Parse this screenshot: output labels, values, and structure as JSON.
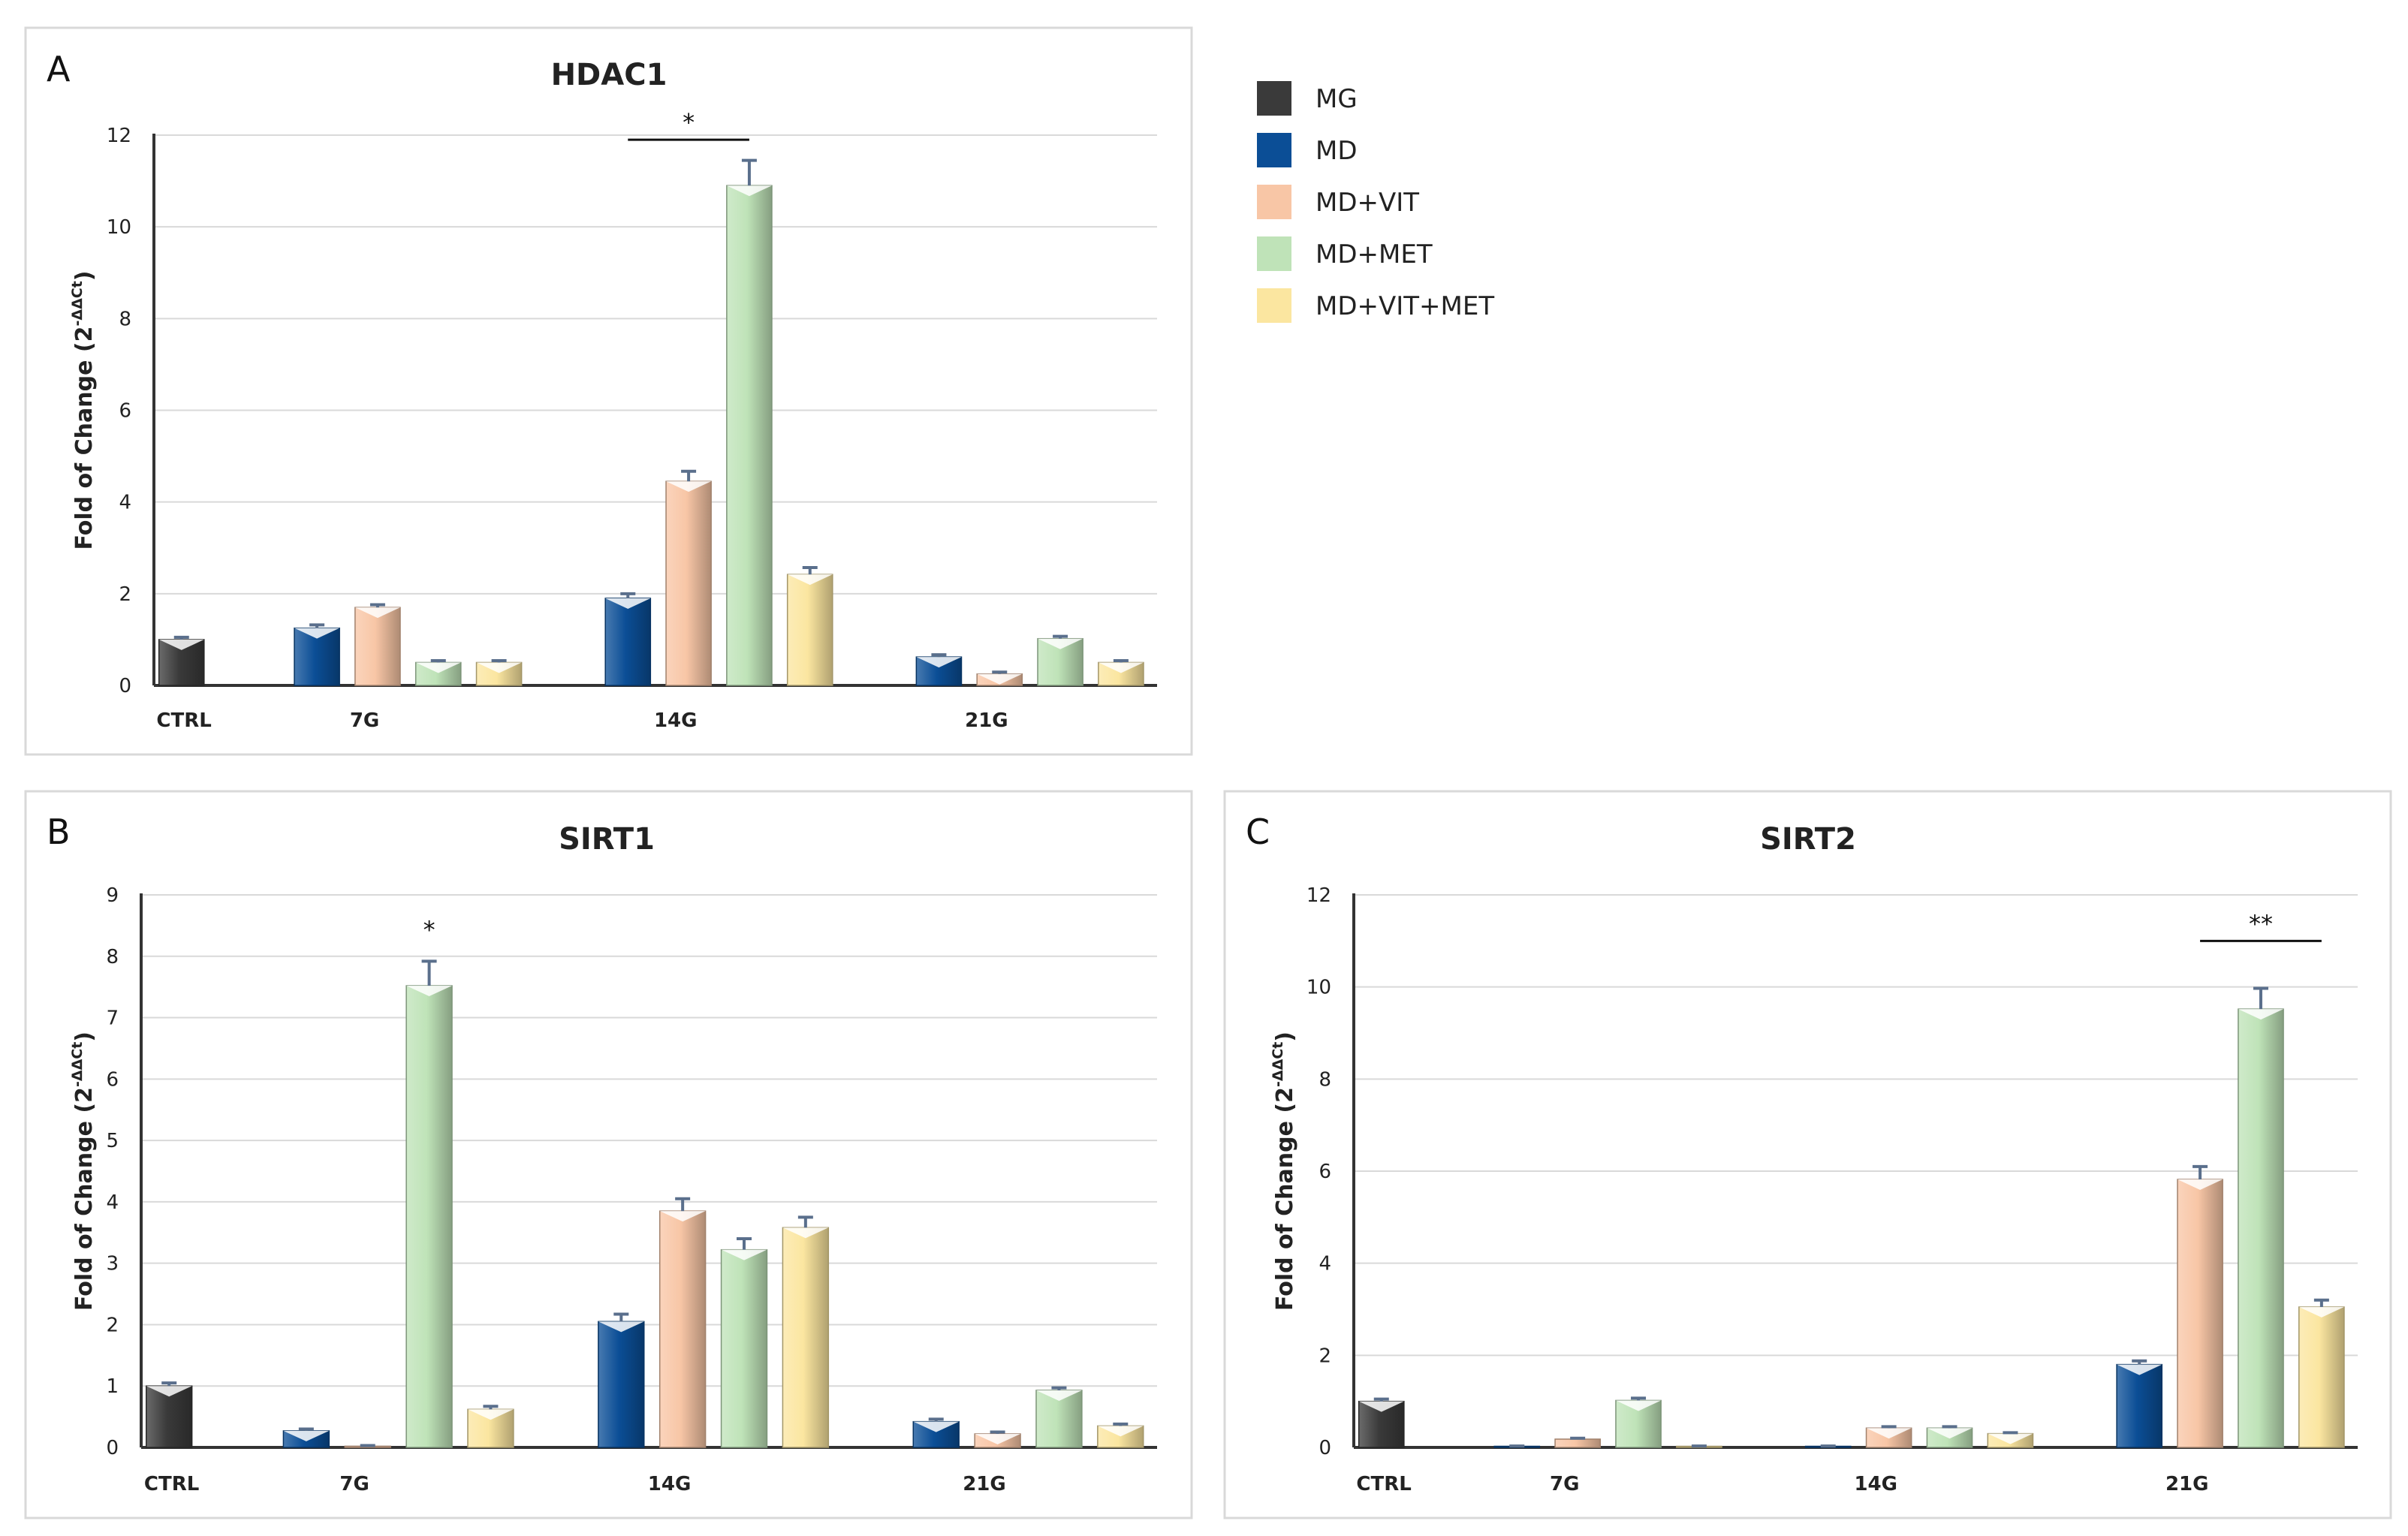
{
  "legend": {
    "items": [
      {
        "label": "MG",
        "color": "#3a3a3a"
      },
      {
        "label": "MD",
        "color": "#0b4e96"
      },
      {
        "label": "MD+VIT",
        "color": "#f8c6a6"
      },
      {
        "label": "MD+MET",
        "color": "#bfe3b8"
      },
      {
        "label": "MD+VIT+MET",
        "color": "#fbe6a0"
      }
    ]
  },
  "chart_data": [
    {
      "panel_letter": "A",
      "type": "bar",
      "title": "HDAC1",
      "ylabel": "Fold of Change (2",
      "ylabel_sup": "-ΔΔCt",
      "ylabel_close": ")",
      "ylim": [
        0,
        12
      ],
      "yticks": [
        0,
        2,
        4,
        6,
        8,
        10,
        12
      ],
      "grid": true,
      "groups": [
        "CTRL",
        "7G",
        "14G",
        "21G"
      ],
      "series": [
        {
          "name": "MG",
          "values": [
            1.0,
            null,
            null,
            null
          ],
          "errors": [
            0.05,
            null,
            null,
            null
          ]
        },
        {
          "name": "MD",
          "values": [
            null,
            1.25,
            1.9,
            0.62
          ],
          "errors": [
            null,
            0.07,
            0.1,
            0.05
          ]
        },
        {
          "name": "MD+VIT",
          "values": [
            null,
            1.7,
            4.45,
            0.25
          ],
          "errors": [
            null,
            0.06,
            0.22,
            0.04
          ]
        },
        {
          "name": "MD+MET",
          "values": [
            null,
            0.5,
            10.9,
            1.02
          ],
          "errors": [
            null,
            0.04,
            0.55,
            0.05
          ]
        },
        {
          "name": "MD+VIT+MET",
          "values": [
            null,
            0.5,
            2.42,
            0.5
          ],
          "errors": [
            null,
            0.04,
            0.15,
            0.04
          ]
        }
      ],
      "annotations": [
        {
          "text": "*",
          "group": "14G",
          "from_series": 1,
          "to_series": 3,
          "y": 11.9,
          "bar": true
        }
      ]
    },
    {
      "panel_letter": "B",
      "type": "bar",
      "title": "SIRT1",
      "ylabel": "Fold of Change (2",
      "ylabel_sup": "-ΔΔCt",
      "ylabel_close": ")",
      "ylim": [
        0,
        9
      ],
      "yticks": [
        0,
        1,
        2,
        3,
        4,
        5,
        6,
        7,
        8,
        9
      ],
      "grid": true,
      "groups": [
        "CTRL",
        "7G",
        "14G",
        "21G"
      ],
      "series": [
        {
          "name": "MG",
          "values": [
            1.0,
            null,
            null,
            null
          ],
          "errors": [
            0.05,
            null,
            null,
            null
          ]
        },
        {
          "name": "MD",
          "values": [
            null,
            0.27,
            2.05,
            0.42
          ],
          "errors": [
            null,
            0.03,
            0.12,
            0.04
          ]
        },
        {
          "name": "MD+VIT",
          "values": [
            null,
            0.02,
            3.85,
            0.22
          ],
          "errors": [
            null,
            0.01,
            0.2,
            0.03
          ]
        },
        {
          "name": "MD+MET",
          "values": [
            null,
            7.52,
            3.22,
            0.93
          ],
          "errors": [
            null,
            0.4,
            0.18,
            0.04
          ]
        },
        {
          "name": "MD+VIT+MET",
          "values": [
            null,
            0.62,
            3.58,
            0.35
          ],
          "errors": [
            null,
            0.05,
            0.17,
            0.03
          ]
        }
      ],
      "annotations": [
        {
          "text": "*",
          "group": "7G",
          "from_series": 3,
          "to_series": 3,
          "y": 8.15,
          "bar": false
        }
      ]
    },
    {
      "panel_letter": "C",
      "type": "bar",
      "title": "SIRT2",
      "ylabel": "Fold of Change (2",
      "ylabel_sup": "-ΔΔCt",
      "ylabel_close": ")",
      "ylim": [
        0,
        12
      ],
      "yticks": [
        0,
        2,
        4,
        6,
        8,
        10,
        12
      ],
      "grid": true,
      "groups": [
        "CTRL",
        "7G",
        "14G",
        "21G"
      ],
      "series": [
        {
          "name": "MG",
          "values": [
            1.0,
            null,
            null,
            null
          ],
          "errors": [
            0.05,
            null,
            null,
            null
          ]
        },
        {
          "name": "MD",
          "values": [
            null,
            0.02,
            0.02,
            1.8
          ],
          "errors": [
            null,
            0.01,
            0.01,
            0.08
          ]
        },
        {
          "name": "MD+VIT",
          "values": [
            null,
            0.18,
            0.42,
            5.82
          ],
          "errors": [
            null,
            0.02,
            0.03,
            0.28
          ]
        },
        {
          "name": "MD+MET",
          "values": [
            null,
            1.02,
            0.42,
            9.52
          ],
          "errors": [
            null,
            0.05,
            0.03,
            0.45
          ]
        },
        {
          "name": "MD+VIT+MET",
          "values": [
            null,
            0.02,
            0.3,
            3.05
          ],
          "errors": [
            null,
            0.01,
            0.02,
            0.15
          ]
        }
      ],
      "annotations": [
        {
          "text": "**",
          "group": "21G",
          "from_series": 2,
          "to_series": 4,
          "y": 11.0,
          "bar": true
        }
      ]
    }
  ]
}
